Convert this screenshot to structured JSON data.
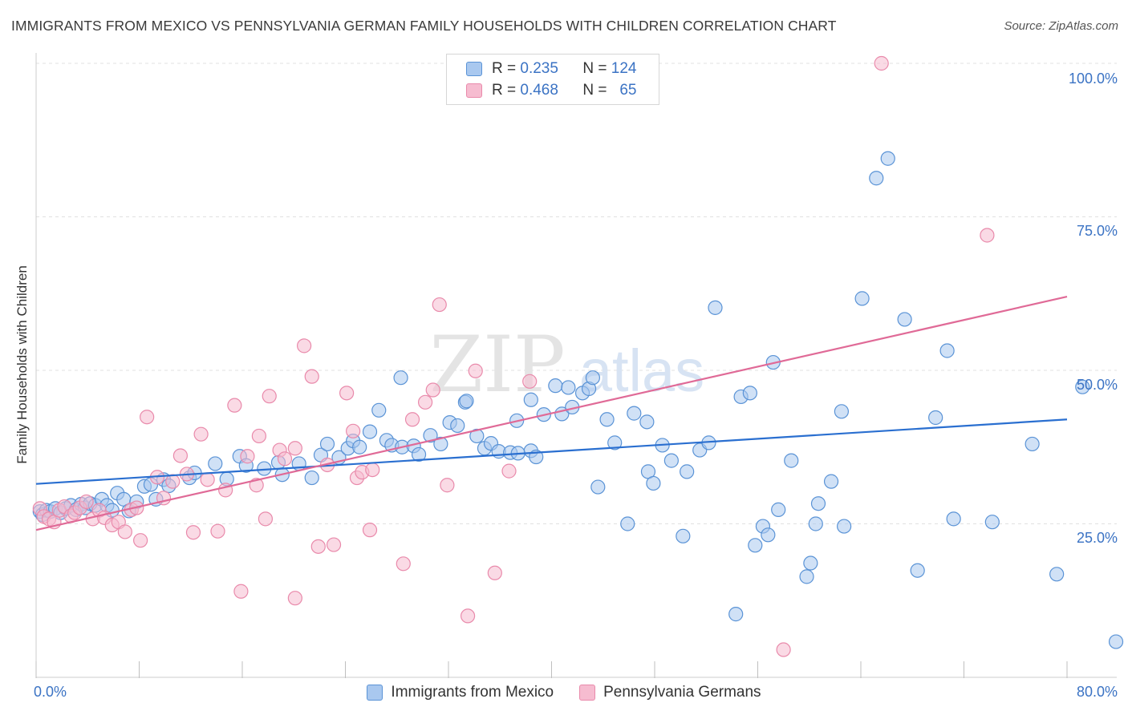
{
  "header": {
    "title": "IMMIGRANTS FROM MEXICO VS PENNSYLVANIA GERMAN FAMILY HOUSEHOLDS WITH CHILDREN CORRELATION CHART",
    "source": "Source: ZipAtlas.com"
  },
  "watermark": {
    "zip": "ZIP",
    "atlas": "atlas"
  },
  "legend": {
    "r_label": "R =",
    "n_label": "N =",
    "rows": [
      {
        "r": "0.235",
        "n": "124"
      },
      {
        "r": "0.468",
        "n": "65"
      }
    ]
  },
  "colors": {
    "blue_fill": "#a9c8ef",
    "blue_stroke": "#5a93d6",
    "blue_line": "#2a6fd0",
    "pink_fill": "#f6bcd0",
    "pink_stroke": "#e98aab",
    "pink_line": "#e06a97",
    "axis_text": "#3b73c4"
  },
  "chart_data": {
    "type": "scatter",
    "xlabel": "",
    "ylabel": "Family Households with Children",
    "xlim": [
      0,
      80
    ],
    "ylim": [
      0,
      100
    ],
    "x_tick_labels": [
      "0.0%",
      "80.0%"
    ],
    "y_tick_labels": [
      "25.0%",
      "50.0%",
      "75.0%",
      "100.0%"
    ],
    "y_ticks": [
      25,
      50,
      75,
      100
    ],
    "grid": true,
    "legend_position": "top-center",
    "series": [
      {
        "name": "Immigrants from Mexico",
        "trend": [
          [
            0,
            31.5
          ],
          [
            80,
            42.0
          ]
        ],
        "points": [
          [
            0.3,
            27
          ],
          [
            0.5,
            26.5
          ],
          [
            0.8,
            27.2
          ],
          [
            1.1,
            27
          ],
          [
            1.5,
            27.5
          ],
          [
            1.9,
            26.8
          ],
          [
            2.3,
            27.5
          ],
          [
            2.7,
            28
          ],
          [
            3.1,
            27.3
          ],
          [
            3.5,
            28.2
          ],
          [
            3.8,
            27.6
          ],
          [
            4.2,
            28.3
          ],
          [
            4.6,
            28
          ],
          [
            5.1,
            29
          ],
          [
            5.5,
            28
          ],
          [
            5.9,
            27.2
          ],
          [
            6.3,
            30
          ],
          [
            6.8,
            29
          ],
          [
            7.2,
            27.1
          ],
          [
            7.8,
            28.6
          ],
          [
            8.4,
            31.1
          ],
          [
            8.9,
            31.4
          ],
          [
            9.3,
            29
          ],
          [
            9.9,
            32.2
          ],
          [
            10.3,
            31.2
          ],
          [
            11.9,
            32.5
          ],
          [
            12.3,
            33.3
          ],
          [
            13.9,
            34.8
          ],
          [
            14.8,
            32.3
          ],
          [
            15.8,
            36
          ],
          [
            16.3,
            34.5
          ],
          [
            17.7,
            34
          ],
          [
            18.8,
            35
          ],
          [
            19.1,
            33
          ],
          [
            20.4,
            34.8
          ],
          [
            21.4,
            32.5
          ],
          [
            22.1,
            36.2
          ],
          [
            22.6,
            38
          ],
          [
            23.5,
            35.8
          ],
          [
            24.2,
            37.3
          ],
          [
            24.6,
            38.5
          ],
          [
            25.1,
            37.5
          ],
          [
            25.9,
            40
          ],
          [
            26.6,
            43.5
          ],
          [
            27.2,
            38.6
          ],
          [
            27.6,
            37.8
          ],
          [
            28.4,
            37.5
          ],
          [
            29.3,
            37.7
          ],
          [
            28.3,
            48.8
          ],
          [
            29.7,
            36.3
          ],
          [
            30.6,
            39.4
          ],
          [
            31.4,
            38
          ],
          [
            32.1,
            41.5
          ],
          [
            32.7,
            41
          ],
          [
            33.3,
            44.8
          ],
          [
            33.4,
            45
          ],
          [
            34.2,
            39.3
          ],
          [
            34.8,
            37.3
          ],
          [
            35.3,
            38.1
          ],
          [
            35.9,
            36.8
          ],
          [
            36.8,
            36.6
          ],
          [
            37.3,
            41.8
          ],
          [
            38.4,
            36.9
          ],
          [
            37.4,
            36.5
          ],
          [
            38.8,
            35.9
          ],
          [
            38.4,
            45.2
          ],
          [
            39.4,
            42.8
          ],
          [
            40.3,
            47.5
          ],
          [
            40.8,
            42.9
          ],
          [
            41.3,
            47.2
          ],
          [
            41.6,
            44
          ],
          [
            42.4,
            46.3
          ],
          [
            42.9,
            47
          ],
          [
            43.2,
            48.8
          ],
          [
            43.6,
            31
          ],
          [
            44.3,
            42
          ],
          [
            44.9,
            38.2
          ],
          [
            45.9,
            25
          ],
          [
            46.4,
            43
          ],
          [
            47.4,
            41.6
          ],
          [
            47.5,
            33.5
          ],
          [
            47.9,
            31.6
          ],
          [
            48.6,
            37.8
          ],
          [
            49.3,
            35.3
          ],
          [
            50.2,
            23
          ],
          [
            50.5,
            33.5
          ],
          [
            51.5,
            37
          ],
          [
            52.2,
            38.2
          ],
          [
            52.7,
            60.2
          ],
          [
            54.3,
            10.3
          ],
          [
            54.7,
            45.7
          ],
          [
            55.4,
            46.3
          ],
          [
            55.8,
            21.5
          ],
          [
            56.4,
            24.6
          ],
          [
            56.8,
            23.2
          ],
          [
            57.2,
            51.3
          ],
          [
            57.6,
            27.3
          ],
          [
            58.6,
            35.3
          ],
          [
            59.8,
            16.4
          ],
          [
            60.1,
            18.6
          ],
          [
            60.5,
            25
          ],
          [
            60.7,
            28.3
          ],
          [
            61.7,
            31.9
          ],
          [
            62.7,
            24.6
          ],
          [
            62.5,
            43.3
          ],
          [
            64.1,
            61.7
          ],
          [
            65.2,
            81.3
          ],
          [
            66.1,
            84.5
          ],
          [
            67.4,
            58.3
          ],
          [
            68.4,
            17.4
          ],
          [
            69.8,
            42.3
          ],
          [
            70.7,
            53.2
          ],
          [
            71.2,
            25.8
          ],
          [
            74.2,
            25.3
          ],
          [
            77.3,
            38
          ],
          [
            79.2,
            16.8
          ],
          [
            81.2,
            47.3
          ],
          [
            83.8,
            5.8
          ]
        ]
      },
      {
        "name": "Pennsylvania Germans",
        "trend": [
          [
            0,
            24.0
          ],
          [
            80,
            62.0
          ]
        ],
        "points": [
          [
            0.3,
            27.5
          ],
          [
            0.6,
            26.2
          ],
          [
            1,
            25.8
          ],
          [
            1.4,
            25.3
          ],
          [
            1.8,
            27.2
          ],
          [
            2.2,
            27.8
          ],
          [
            2.7,
            26.3
          ],
          [
            3,
            26.8
          ],
          [
            3.4,
            27.6
          ],
          [
            3.9,
            28.6
          ],
          [
            4.4,
            25.8
          ],
          [
            4.9,
            27.2
          ],
          [
            5.3,
            26
          ],
          [
            5.9,
            24.8
          ],
          [
            6.4,
            25.3
          ],
          [
            6.9,
            23.7
          ],
          [
            7.4,
            27.3
          ],
          [
            7.8,
            27.6
          ],
          [
            8.1,
            22.3
          ],
          [
            8.6,
            42.4
          ],
          [
            9.4,
            32.6
          ],
          [
            9.9,
            29.2
          ],
          [
            10.6,
            31.9
          ],
          [
            11.2,
            36.1
          ],
          [
            11.7,
            33.1
          ],
          [
            12.2,
            23.6
          ],
          [
            12.8,
            39.6
          ],
          [
            13.3,
            32.2
          ],
          [
            14.1,
            23.8
          ],
          [
            14.7,
            30.5
          ],
          [
            15.4,
            44.3
          ],
          [
            15.9,
            14
          ],
          [
            16.4,
            36
          ],
          [
            17.1,
            31.3
          ],
          [
            17.3,
            39.3
          ],
          [
            17.8,
            25.8
          ],
          [
            18.1,
            45.8
          ],
          [
            18.9,
            37
          ],
          [
            19.3,
            35.6
          ],
          [
            20.1,
            37.3
          ],
          [
            20.1,
            12.9
          ],
          [
            20.8,
            54
          ],
          [
            21.4,
            49
          ],
          [
            21.9,
            21.3
          ],
          [
            22.6,
            34.6
          ],
          [
            23.1,
            21.6
          ],
          [
            24.1,
            46.3
          ],
          [
            24.6,
            40.1
          ],
          [
            24.9,
            32.5
          ],
          [
            25.3,
            33.4
          ],
          [
            25.9,
            24
          ],
          [
            26.1,
            33.8
          ],
          [
            28.5,
            18.5
          ],
          [
            29.2,
            42
          ],
          [
            30.2,
            44.8
          ],
          [
            30.8,
            46.8
          ],
          [
            31.3,
            60.7
          ],
          [
            31.9,
            31.3
          ],
          [
            33.5,
            10
          ],
          [
            34.1,
            49.9
          ],
          [
            35.6,
            17
          ],
          [
            36.7,
            33.6
          ],
          [
            38.3,
            48.2
          ],
          [
            58,
            4.5
          ],
          [
            65.6,
            100
          ],
          [
            73.8,
            72
          ]
        ]
      }
    ]
  }
}
